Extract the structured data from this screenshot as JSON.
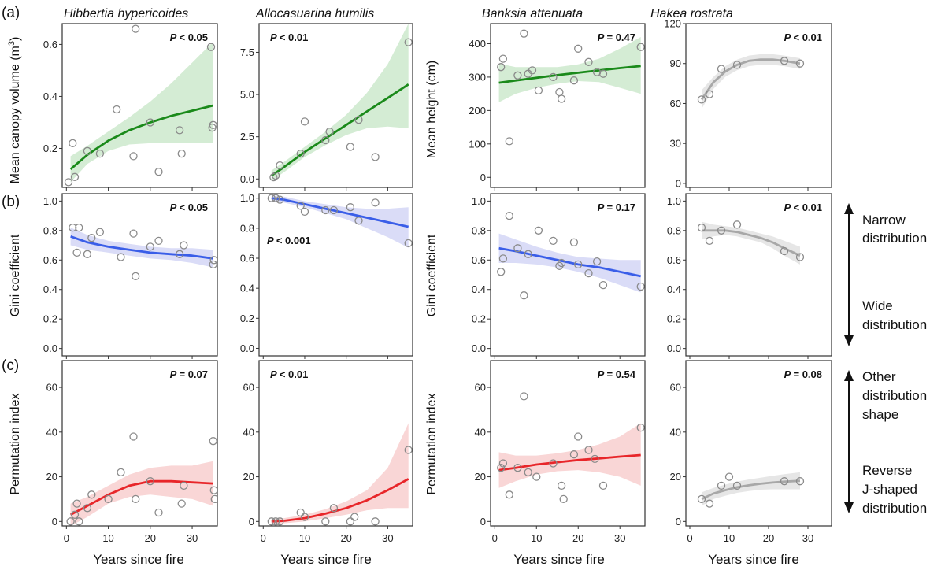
{
  "figure": {
    "row_labels": [
      "(a)",
      "(b)",
      "(c)"
    ],
    "species": [
      "Hibbertia hypericoides",
      "Allocasuarina humilis",
      "Banksia attenuata",
      "Hakea rostrata"
    ],
    "xlabel": "Years since fire",
    "ylabels": {
      "canopy_prefix": "Mean canopy volume  (m",
      "canopy_sup": "3",
      "canopy_suffix": ")",
      "height": "Mean height (cm)",
      "gini": "Gini coefficient",
      "perm": "Permutation index"
    },
    "legend": {
      "narrow_1": "Narrow",
      "narrow_2": "distribution",
      "wide_1": "Wide",
      "wide_2": "distribution",
      "other_1": "Other",
      "other_2": "distribution",
      "other_3": "shape",
      "reverse_1": "Reverse",
      "reverse_2": "J-shaped",
      "reverse_3": "distribution"
    }
  },
  "colors": {
    "green": "#1a8a1a",
    "green_band": "#d4ecd4",
    "blue": "#3a5ee8",
    "blue_band": "#dadcf7",
    "red": "#e8262a",
    "red_band": "#f9d6d6",
    "grey": "#a8a8a8",
    "grey_band": "#e6e6e6",
    "point": "#8a8a8a"
  },
  "chart_data": [
    {
      "id": "a1",
      "type": "scatter",
      "species": "Hibbertia hypericoides",
      "ylabel": "Mean canopy volume (m3)",
      "xlim": [
        -1,
        36
      ],
      "ylim": [
        0.05,
        0.68
      ],
      "xticks": [
        0,
        10,
        20,
        30
      ],
      "yticks": [
        0.2,
        0.4,
        0.6
      ],
      "ytick_labels": [
        "0.2",
        "0.4",
        "0.6"
      ],
      "p_prefix": "P",
      "p_value": "< 0.05",
      "p_pos": "right",
      "color": "green",
      "x": [
        0.5,
        1.5,
        2,
        5,
        8,
        12,
        16,
        16.5,
        20,
        22,
        27,
        27.5,
        34.5,
        34.8,
        35
      ],
      "y": [
        0.07,
        0.22,
        0.09,
        0.19,
        0.18,
        0.35,
        0.17,
        0.66,
        0.3,
        0.11,
        0.27,
        0.18,
        0.59,
        0.28,
        0.29
      ],
      "fit_x": [
        1,
        5,
        10,
        15,
        20,
        25,
        30,
        35
      ],
      "fit_y": [
        0.12,
        0.175,
        0.23,
        0.27,
        0.3,
        0.325,
        0.345,
        0.365
      ],
      "band_upper": [
        0.17,
        0.21,
        0.265,
        0.32,
        0.38,
        0.45,
        0.53,
        0.61
      ],
      "band_lower": [
        0.07,
        0.14,
        0.19,
        0.215,
        0.22,
        0.22,
        0.22,
        0.22
      ]
    },
    {
      "id": "a2",
      "type": "scatter",
      "species": "Allocasuarina humilis",
      "ylabel": "",
      "xlim": [
        -1,
        36
      ],
      "ylim": [
        -0.5,
        9.2
      ],
      "xticks": [
        0,
        10,
        20,
        30
      ],
      "yticks": [
        0,
        2.5,
        5,
        7.5
      ],
      "ytick_labels": [
        "0.0",
        "2.5",
        "5.0",
        "7.5"
      ],
      "p_prefix": "P",
      "p_value": "< 0.01",
      "p_pos": "left",
      "color": "green",
      "x": [
        2.5,
        3,
        4,
        9,
        10,
        15,
        16,
        21,
        23,
        27,
        35
      ],
      "y": [
        0.1,
        0.2,
        0.8,
        1.5,
        3.4,
        2.3,
        2.8,
        1.9,
        3.5,
        1.3,
        8.1
      ],
      "fit_x": [
        2,
        5,
        10,
        15,
        20,
        25,
        30,
        35
      ],
      "fit_y": [
        0.2,
        0.7,
        1.6,
        2.4,
        3.2,
        4.0,
        4.8,
        5.6
      ],
      "band_upper": [
        0.5,
        1.0,
        1.9,
        2.8,
        3.8,
        5.1,
        6.8,
        9.2
      ],
      "band_lower": [
        -0.1,
        0.4,
        1.3,
        2.0,
        2.6,
        3.0,
        3.1,
        3.0
      ]
    },
    {
      "id": "a3",
      "type": "scatter",
      "species": "Banksia attenuata",
      "ylabel": "Mean height (cm)",
      "xlim": [
        -1,
        36
      ],
      "ylim": [
        -30,
        460
      ],
      "xticks": [
        0,
        10,
        20,
        30
      ],
      "yticks": [
        0,
        100,
        200,
        300,
        400
      ],
      "ytick_labels": [
        "0",
        "100",
        "200",
        "300",
        "400"
      ],
      "p_prefix": "P",
      "p_value": "= 0.47",
      "p_pos": "right",
      "color": "green",
      "x": [
        1.5,
        2,
        3.5,
        5.5,
        7,
        8,
        9,
        10.5,
        14,
        15.5,
        16,
        19,
        20,
        22.5,
        24.5,
        26,
        35
      ],
      "y": [
        330,
        355,
        108,
        305,
        430,
        310,
        320,
        260,
        300,
        255,
        235,
        290,
        385,
        345,
        315,
        310,
        390
      ],
      "fit_x": [
        1,
        5,
        10,
        15,
        20,
        25,
        30,
        35
      ],
      "fit_y": [
        283,
        290,
        298,
        306,
        313,
        320,
        327,
        333
      ],
      "band_upper": [
        340,
        330,
        330,
        330,
        338,
        355,
        385,
        420
      ],
      "band_lower": [
        225,
        250,
        268,
        280,
        288,
        285,
        268,
        250
      ]
    },
    {
      "id": "a4",
      "type": "scatter",
      "species": "Hakea rostrata",
      "ylabel": "",
      "xlim": [
        -1,
        36
      ],
      "ylim": [
        -3,
        120
      ],
      "xticks": [
        0,
        10,
        20,
        30
      ],
      "yticks": [
        0,
        30,
        60,
        90,
        120
      ],
      "ytick_labels": [
        "0",
        "30",
        "60",
        "90",
        "120"
      ],
      "p_prefix": "P",
      "p_value": "< 0.01",
      "p_pos": "right",
      "color": "grey",
      "x": [
        3,
        5,
        8,
        12,
        24,
        28
      ],
      "y": [
        63,
        67,
        86,
        89,
        92,
        90
      ],
      "fit_x": [
        3,
        6,
        9,
        12,
        15,
        18,
        21,
        24,
        28
      ],
      "fit_y": [
        63,
        76,
        84,
        89,
        92,
        93,
        93,
        92,
        90
      ],
      "band_upper": [
        70,
        80,
        88,
        93,
        96,
        97,
        97,
        96,
        94
      ],
      "band_lower": [
        56,
        71,
        80,
        85,
        88,
        89,
        89,
        88,
        86
      ]
    },
    {
      "id": "b1",
      "type": "scatter",
      "species": "Hibbertia hypericoides",
      "ylabel": "Gini coefficient",
      "xlim": [
        -1,
        36
      ],
      "ylim": [
        -0.05,
        1.05
      ],
      "xticks": [
        0,
        10,
        20,
        30
      ],
      "yticks": [
        0,
        0.2,
        0.4,
        0.6,
        0.8,
        1.0
      ],
      "ytick_labels": [
        "0.0",
        "0.2",
        "0.4",
        "0.6",
        "0.8",
        "1.0"
      ],
      "p_prefix": "P",
      "p_value": "< 0.05",
      "p_pos": "right",
      "color": "blue",
      "x": [
        1.5,
        2.5,
        3,
        5,
        6,
        8,
        13,
        16,
        16.5,
        20,
        22,
        27,
        28,
        35,
        35.2
      ],
      "y": [
        0.82,
        0.65,
        0.82,
        0.64,
        0.75,
        0.79,
        0.62,
        0.78,
        0.49,
        0.69,
        0.73,
        0.64,
        0.7,
        0.57,
        0.6
      ],
      "fit_x": [
        1,
        5,
        10,
        15,
        20,
        25,
        30,
        35
      ],
      "fit_y": [
        0.76,
        0.72,
        0.69,
        0.67,
        0.65,
        0.64,
        0.63,
        0.61
      ],
      "band_upper": [
        0.82,
        0.77,
        0.73,
        0.71,
        0.69,
        0.68,
        0.68,
        0.67
      ],
      "band_lower": [
        0.7,
        0.67,
        0.65,
        0.63,
        0.61,
        0.6,
        0.58,
        0.55
      ]
    },
    {
      "id": "b2",
      "type": "scatter",
      "species": "Allocasuarina humilis",
      "ylabel": "",
      "xlim": [
        -1,
        36
      ],
      "ylim": [
        -0.05,
        1.03
      ],
      "xticks": [
        0,
        10,
        20,
        30
      ],
      "yticks": [
        0,
        0.2,
        0.4,
        0.6,
        0.8,
        1.0
      ],
      "ytick_labels": [
        "0.0",
        "0.2",
        "0.4",
        "0.6",
        "0.8",
        "1.0"
      ],
      "p_prefix": "P",
      "p_value": "< 0.001",
      "p_pos": "middle",
      "color": "blue",
      "x": [
        2,
        3,
        4,
        9,
        10,
        15,
        17,
        21,
        23,
        27,
        35
      ],
      "y": [
        1.0,
        1.0,
        0.99,
        0.95,
        0.91,
        0.92,
        0.92,
        0.94,
        0.85,
        0.97,
        0.7
      ],
      "fit_x": [
        2,
        5,
        10,
        15,
        20,
        25,
        30,
        35
      ],
      "fit_y": [
        1.0,
        0.99,
        0.96,
        0.93,
        0.9,
        0.87,
        0.84,
        0.81
      ],
      "band_upper": [
        1.02,
        1.01,
        0.98,
        0.96,
        0.94,
        0.93,
        0.93,
        0.94
      ],
      "band_lower": [
        0.98,
        0.97,
        0.94,
        0.9,
        0.86,
        0.8,
        0.74,
        0.67
      ]
    },
    {
      "id": "b3",
      "type": "scatter",
      "species": "Banksia attenuata",
      "ylabel": "Gini coefficient",
      "xlim": [
        -1,
        36
      ],
      "ylim": [
        -0.05,
        1.05
      ],
      "xticks": [
        0,
        10,
        20,
        30
      ],
      "yticks": [
        0,
        0.2,
        0.4,
        0.6,
        0.8,
        1.0
      ],
      "ytick_labels": [
        "0.0",
        "0.2",
        "0.4",
        "0.6",
        "0.8",
        "1.0"
      ],
      "p_prefix": "P",
      "p_value": "= 0.17",
      "p_pos": "right",
      "color": "blue",
      "x": [
        1.5,
        2,
        3.5,
        5.5,
        7,
        8,
        10.5,
        14,
        15.5,
        16,
        19,
        20,
        22.5,
        24.5,
        26,
        35
      ],
      "y": [
        0.52,
        0.61,
        0.9,
        0.68,
        0.36,
        0.64,
        0.8,
        0.73,
        0.56,
        0.58,
        0.72,
        0.57,
        0.51,
        0.59,
        0.43,
        0.42
      ],
      "fit_x": [
        1,
        5,
        10,
        15,
        20,
        25,
        30,
        35
      ],
      "fit_y": [
        0.68,
        0.66,
        0.63,
        0.6,
        0.57,
        0.55,
        0.52,
        0.49
      ],
      "band_upper": [
        0.78,
        0.74,
        0.69,
        0.65,
        0.62,
        0.61,
        0.6,
        0.6
      ],
      "band_lower": [
        0.58,
        0.58,
        0.57,
        0.55,
        0.52,
        0.48,
        0.43,
        0.38
      ]
    },
    {
      "id": "b4",
      "type": "scatter",
      "species": "Hakea rostrata",
      "ylabel": "",
      "xlim": [
        -1,
        36
      ],
      "ylim": [
        -0.05,
        1.05
      ],
      "xticks": [
        0,
        10,
        20,
        30
      ],
      "yticks": [
        0,
        0.2,
        0.4,
        0.6,
        0.8,
        1.0
      ],
      "ytick_labels": [
        "0.0",
        "0.2",
        "0.4",
        "0.6",
        "0.8",
        "1.0"
      ],
      "p_prefix": "P",
      "p_value": "< 0.01",
      "p_pos": "right",
      "color": "grey",
      "x": [
        3,
        5,
        8,
        12,
        24,
        28
      ],
      "y": [
        0.82,
        0.73,
        0.8,
        0.84,
        0.66,
        0.62
      ],
      "fit_x": [
        3,
        6,
        9,
        12,
        15,
        18,
        21,
        24,
        28
      ],
      "fit_y": [
        0.8,
        0.8,
        0.8,
        0.79,
        0.77,
        0.75,
        0.72,
        0.68,
        0.63
      ],
      "band_upper": [
        0.86,
        0.84,
        0.83,
        0.82,
        0.8,
        0.78,
        0.76,
        0.73,
        0.69
      ],
      "band_lower": [
        0.74,
        0.76,
        0.77,
        0.76,
        0.74,
        0.72,
        0.68,
        0.63,
        0.57
      ]
    },
    {
      "id": "c1",
      "type": "scatter",
      "species": "Hibbertia hypericoides",
      "ylabel": "Permutation index",
      "xlim": [
        -1,
        36
      ],
      "ylim": [
        -2,
        72
      ],
      "xticks": [
        0,
        10,
        20,
        30
      ],
      "yticks": [
        0,
        20,
        40,
        60
      ],
      "ytick_labels": [
        "0",
        "20",
        "40",
        "60"
      ],
      "p_prefix": "P",
      "p_value": "= 0.07",
      "p_pos": "right",
      "color": "red",
      "x": [
        1,
        2,
        2.5,
        3,
        5,
        6,
        10,
        13,
        16,
        16.5,
        20,
        22,
        27.5,
        28,
        35,
        35.2,
        35.4
      ],
      "y": [
        0,
        3,
        8,
        0,
        6,
        12,
        10,
        22,
        38,
        10,
        18,
        4,
        8,
        16,
        36,
        14,
        10
      ],
      "fit_x": [
        1,
        5,
        10,
        15,
        20,
        25,
        30,
        35
      ],
      "fit_y": [
        3,
        7,
        12,
        16,
        18,
        18,
        17.5,
        17
      ],
      "band_upper": [
        8,
        11,
        16,
        21,
        24,
        25,
        25,
        27
      ],
      "band_lower": [
        -2,
        2,
        8,
        11,
        12,
        11,
        10,
        7
      ]
    },
    {
      "id": "c2",
      "type": "scatter",
      "species": "Allocasuarina humilis",
      "ylabel": "",
      "xlim": [
        -1,
        36
      ],
      "ylim": [
        -2,
        72
      ],
      "xticks": [
        0,
        10,
        20,
        30
      ],
      "yticks": [
        0,
        20,
        40,
        60
      ],
      "ytick_labels": [
        "0",
        "20",
        "40",
        "60"
      ],
      "p_prefix": "P",
      "p_value": "< 0.01",
      "p_pos": "left",
      "color": "red",
      "x": [
        2,
        3,
        4,
        9,
        10,
        15,
        17,
        21,
        22,
        27,
        35
      ],
      "y": [
        0,
        0,
        0,
        4,
        2,
        0,
        6,
        0,
        2,
        0,
        32
      ],
      "fit_x": [
        2,
        5,
        10,
        15,
        20,
        25,
        30,
        35
      ],
      "fit_y": [
        0,
        0.3,
        1.5,
        3.5,
        6,
        9.5,
        14,
        19
      ],
      "band_upper": [
        1,
        1.5,
        3,
        5.5,
        9,
        14,
        24,
        44
      ],
      "band_lower": [
        -1,
        -0.8,
        0,
        1.5,
        3,
        5,
        6,
        6
      ]
    },
    {
      "id": "c3",
      "type": "scatter",
      "species": "Banksia attenuata",
      "ylabel": "Permutation index",
      "xlim": [
        -1,
        36
      ],
      "ylim": [
        -2,
        72
      ],
      "xticks": [
        0,
        10,
        20,
        30
      ],
      "yticks": [
        0,
        20,
        40,
        60
      ],
      "ytick_labels": [
        "0",
        "20",
        "40",
        "60"
      ],
      "p_prefix": "P",
      "p_value": "= 0.54",
      "p_pos": "right",
      "color": "red",
      "x": [
        1.5,
        2,
        3.5,
        5.5,
        7,
        8,
        10,
        14,
        16,
        16.5,
        19,
        20,
        22.5,
        24,
        26,
        35
      ],
      "y": [
        24,
        26,
        12,
        24,
        56,
        22,
        20,
        26,
        16,
        10,
        30,
        38,
        32,
        28,
        16,
        42
      ],
      "fit_x": [
        1,
        5,
        10,
        15,
        20,
        25,
        30,
        35
      ],
      "fit_y": [
        23,
        24,
        25.5,
        26.5,
        27.5,
        28.2,
        29,
        29.7
      ],
      "band_upper": [
        31,
        29.5,
        29.5,
        30.5,
        32,
        34.5,
        38,
        44
      ],
      "band_lower": [
        15,
        18,
        21,
        22.5,
        23,
        22,
        20,
        16
      ]
    },
    {
      "id": "c4",
      "type": "scatter",
      "species": "Hakea rostrata",
      "ylabel": "",
      "xlim": [
        -1,
        36
      ],
      "ylim": [
        -2,
        72
      ],
      "xticks": [
        0,
        10,
        20,
        30
      ],
      "yticks": [
        0,
        20,
        40,
        60
      ],
      "ytick_labels": [
        "0",
        "20",
        "40",
        "60"
      ],
      "p_prefix": "P",
      "p_value": "= 0.08",
      "p_pos": "right",
      "color": "grey",
      "x": [
        3,
        5,
        8,
        10,
        12,
        24,
        28
      ],
      "y": [
        10,
        8,
        16,
        20,
        16,
        18,
        18
      ],
      "fit_x": [
        3,
        6,
        9,
        12,
        15,
        18,
        21,
        24,
        28
      ],
      "fit_y": [
        10,
        12.5,
        14,
        15.3,
        16.2,
        16.9,
        17.4,
        17.8,
        18.2
      ],
      "band_upper": [
        13,
        15,
        16.5,
        17.8,
        18.8,
        19.6,
        20.4,
        21.2,
        22
      ],
      "band_lower": [
        7,
        10,
        11.5,
        12.8,
        13.6,
        14.2,
        14.4,
        14.4,
        14.4
      ]
    }
  ]
}
